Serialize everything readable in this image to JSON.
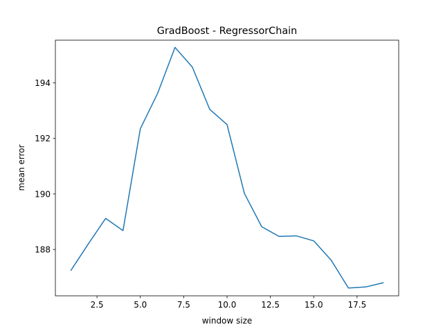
{
  "chart_data": {
    "type": "line",
    "title": "GradBoost - RegressorChain",
    "xlabel": "window size",
    "ylabel": "mean error",
    "xlim": [
      0.1,
      19.9
    ],
    "ylim": [
      186.33,
      195.54
    ],
    "xticks": [
      2.5,
      5.0,
      7.5,
      10.0,
      12.5,
      15.0,
      17.5
    ],
    "xtick_labels": [
      "2.5",
      "5.0",
      "7.5",
      "10.0",
      "12.5",
      "15.0",
      "17.5"
    ],
    "yticks": [
      188,
      190,
      192,
      194
    ],
    "ytick_labels": [
      "188",
      "190",
      "192",
      "194"
    ],
    "grid": false,
    "line_color": "#1f77b4",
    "series": [
      {
        "x": [
          1,
          2,
          3,
          4,
          5,
          6,
          7,
          8,
          9,
          10,
          11,
          12,
          13,
          14,
          15,
          16,
          17,
          18,
          19
        ],
        "values": [
          187.25,
          188.2,
          189.12,
          188.68,
          192.35,
          193.63,
          195.28,
          194.57,
          193.05,
          192.5,
          190.02,
          188.82,
          188.47,
          188.49,
          188.31,
          187.62,
          186.61,
          186.65,
          186.8
        ]
      }
    ]
  }
}
